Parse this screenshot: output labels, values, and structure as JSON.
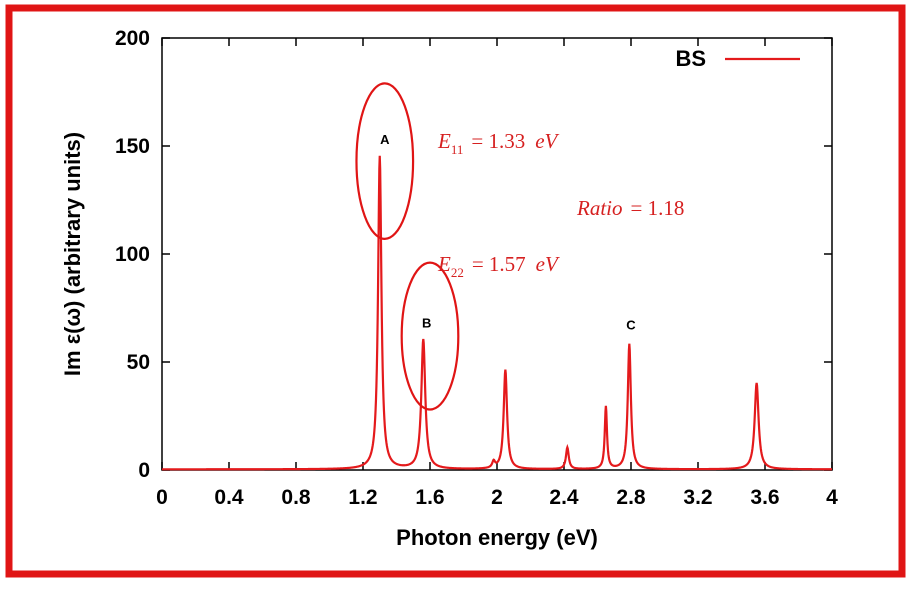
{
  "chart_data": {
    "type": "line",
    "xlabel": "Photon energy (eV)",
    "ylabel": "Im ε(ω) (arbitrary units)",
    "xlim": [
      0,
      4
    ],
    "ylim": [
      0,
      200
    ],
    "x_ticks": [
      "0",
      "0.4",
      "0.8",
      "1.2",
      "1.6",
      "2",
      "2.4",
      "2.8",
      "3.2",
      "3.6",
      "4"
    ],
    "y_ticks": [
      "0",
      "50",
      "100",
      "150",
      "200"
    ],
    "grid": false,
    "legend_position": "top-right",
    "series": [
      {
        "name": "BS",
        "color": "#e41a1c",
        "peaks": [
          {
            "x": 1.3,
            "y": 145,
            "w": 0.012
          },
          {
            "x": 1.56,
            "y": 60,
            "w": 0.014
          },
          {
            "x": 1.98,
            "y": 3,
            "w": 0.01
          },
          {
            "x": 2.05,
            "y": 46,
            "w": 0.012
          },
          {
            "x": 2.42,
            "y": 10,
            "w": 0.01
          },
          {
            "x": 2.65,
            "y": 29,
            "w": 0.008
          },
          {
            "x": 2.79,
            "y": 58,
            "w": 0.011
          },
          {
            "x": 3.55,
            "y": 40,
            "w": 0.014
          }
        ]
      }
    ],
    "annotations": {
      "peak_labels": [
        {
          "text": "A",
          "x": 1.33,
          "y": 151
        },
        {
          "text": "B",
          "x": 1.58,
          "y": 66
        },
        {
          "text": "C",
          "x": 2.8,
          "y": 65
        }
      ],
      "circles": [
        {
          "cx": 1.33,
          "cy": 143,
          "rx": 0.26,
          "ry": 18
        },
        {
          "cx": 1.6,
          "cy": 62,
          "rx": 0.26,
          "ry": 17
        }
      ],
      "equations": {
        "e11_sym": "E",
        "e11_sub": "11",
        "e11_val": "= 1.33",
        "e11_unit": "eV",
        "e22_sym": "E",
        "e22_sub": "22",
        "e22_val": "= 1.57",
        "e22_unit": "eV",
        "ratio_sym": "Ratio",
        "ratio_val": "= 1.18"
      }
    }
  }
}
